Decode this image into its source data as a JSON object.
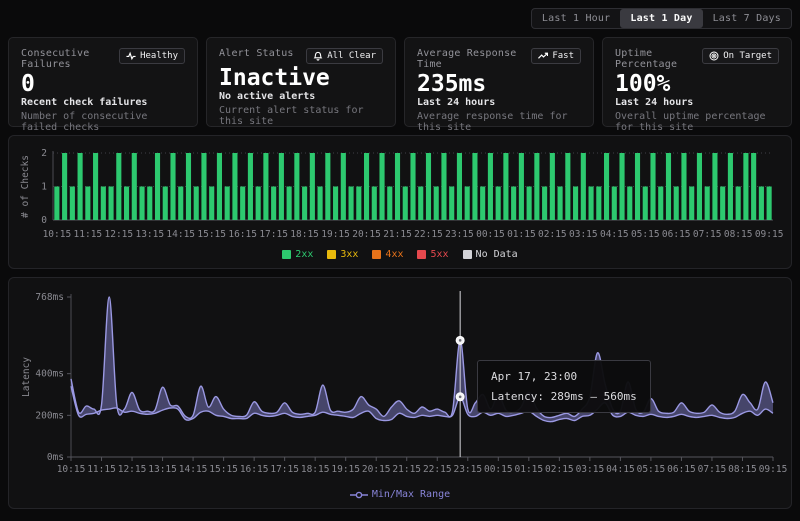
{
  "header": {
    "time_ranges": [
      {
        "label": "Last 1 Hour",
        "active": false
      },
      {
        "label": "Last 1 Day",
        "active": true
      },
      {
        "label": "Last 7 Days",
        "active": false
      }
    ]
  },
  "cards": [
    {
      "title": "Consecutive Failures",
      "badge": {
        "icon": "pulse-icon",
        "label": "Healthy"
      },
      "value": "0",
      "subtitle": "Recent check failures",
      "description": "Number of consecutive failed checks"
    },
    {
      "title": "Alert Status",
      "badge": {
        "icon": "bell-icon",
        "label": "All Clear"
      },
      "value": "Inactive",
      "subtitle": "No active alerts",
      "description": "Current alert status for this site"
    },
    {
      "title": "Average Response Time",
      "badge": {
        "icon": "trend-up-icon",
        "label": "Fast"
      },
      "value": "235ms",
      "subtitle": "Last 24 hours",
      "description": "Average response time for this site"
    },
    {
      "title": "Uptime Percentage",
      "badge": {
        "icon": "target-icon",
        "label": "On Target"
      },
      "value": "100%",
      "subtitle": "Last 24 hours",
      "description": "Overall uptime percentage for this site"
    }
  ],
  "colors": {
    "green": "#2dc96f",
    "yellow": "#e8b90c",
    "orange": "#e8731a",
    "red": "#e5484d",
    "nodata": "#d4d4d8",
    "purple": "#8884d8",
    "purple_line": "#9b99e3",
    "axis_text": "#8a8a91",
    "grid": "#3f3f46"
  },
  "chart_data": [
    {
      "type": "bar",
      "ylabel": "# of Checks",
      "y_ticks": [
        0,
        1,
        2
      ],
      "ylim": [
        0,
        2
      ],
      "categories": [
        "10:15",
        "11:15",
        "12:15",
        "13:15",
        "14:15",
        "15:15",
        "16:15",
        "17:15",
        "18:15",
        "19:15",
        "20:15",
        "21:15",
        "22:15",
        "23:15",
        "00:15",
        "01:15",
        "02:15",
        "03:15",
        "04:15",
        "05:15",
        "06:15",
        "07:15",
        "08:15",
        "09:15"
      ],
      "label_every": 4,
      "values": [
        1,
        2,
        1,
        2,
        1,
        2,
        1,
        1,
        2,
        1,
        2,
        1,
        1,
        2,
        1,
        2,
        1,
        2,
        1,
        2,
        1,
        2,
        1,
        2,
        1,
        2,
        1,
        2,
        1,
        2,
        1,
        2,
        1,
        2,
        1,
        2,
        1,
        2,
        1,
        1,
        2,
        1,
        2,
        1,
        2,
        1,
        2,
        1,
        2,
        1,
        2,
        1,
        2,
        1,
        2,
        1,
        2,
        1,
        2,
        1,
        2,
        1,
        2,
        1,
        2,
        1,
        2,
        1,
        2,
        1,
        1,
        2,
        1,
        2,
        1,
        2,
        1,
        2,
        1,
        2,
        1,
        2,
        1,
        2,
        1,
        2,
        1,
        2,
        1,
        2,
        2,
        1,
        1
      ],
      "bar_color": "#2dc96f",
      "legend": [
        {
          "label": "2xx",
          "color": "#2dc96f"
        },
        {
          "label": "3xx",
          "color": "#e8b90c"
        },
        {
          "label": "4xx",
          "color": "#e8731a"
        },
        {
          "label": "5xx",
          "color": "#e5484d"
        },
        {
          "label": "No Data",
          "color": "#d4d4d8"
        }
      ]
    },
    {
      "type": "area",
      "ylabel": "Latency",
      "ylim": [
        0,
        768
      ],
      "y_ticks": [
        {
          "v": 0,
          "label": "0ms"
        },
        {
          "v": 200,
          "label": "200ms"
        },
        {
          "v": 400,
          "label": "400ms"
        },
        {
          "v": 768,
          "label": "768ms"
        }
      ],
      "categories": [
        "10:15",
        "11:15",
        "12:15",
        "13:15",
        "14:15",
        "15:15",
        "16:15",
        "17:15",
        "18:15",
        "19:15",
        "20:15",
        "21:15",
        "22:15",
        "23:15",
        "00:15",
        "01:15",
        "02:15",
        "03:15",
        "04:15",
        "05:15",
        "06:15",
        "07:15",
        "08:15",
        "09:15"
      ],
      "label_every": 4,
      "series": [
        {
          "name": "min",
          "values": [
            340,
            200,
            205,
            210,
            225,
            230,
            235,
            215,
            220,
            210,
            205,
            210,
            225,
            235,
            230,
            180,
            185,
            215,
            220,
            200,
            195,
            185,
            185,
            185,
            210,
            200,
            195,
            200,
            210,
            195,
            190,
            195,
            200,
            215,
            205,
            200,
            195,
            190,
            210,
            220,
            185,
            175,
            180,
            210,
            195,
            190,
            200,
            195,
            200,
            195,
            200,
            289,
            205,
            195,
            215,
            200,
            210,
            195,
            200,
            210,
            220,
            195,
            175,
            170,
            180,
            185,
            175,
            195,
            200,
            230,
            260,
            200,
            195,
            215,
            200,
            195,
            205,
            195,
            190,
            195,
            205,
            195,
            190,
            195,
            200,
            190,
            185,
            190,
            210,
            220,
            200,
            230,
            210
          ]
        },
        {
          "name": "max",
          "values": [
            375,
            215,
            245,
            230,
            250,
            768,
            250,
            230,
            310,
            225,
            220,
            225,
            335,
            250,
            245,
            195,
            200,
            340,
            240,
            290,
            230,
            200,
            195,
            200,
            265,
            220,
            210,
            215,
            260,
            215,
            205,
            210,
            215,
            345,
            225,
            220,
            215,
            230,
            290,
            250,
            230,
            195,
            240,
            270,
            230,
            210,
            240,
            220,
            230,
            215,
            220,
            560,
            230,
            260,
            300,
            230,
            300,
            225,
            215,
            240,
            310,
            235,
            195,
            190,
            200,
            210,
            195,
            230,
            290,
            500,
            350,
            230,
            220,
            360,
            230,
            215,
            280,
            220,
            210,
            215,
            260,
            220,
            210,
            215,
            250,
            215,
            205,
            220,
            300,
            260,
            230,
            360,
            260
          ]
        }
      ],
      "legend": [
        {
          "label": "Min/Max Range",
          "color": "#8884d8"
        }
      ],
      "crosshair": {
        "index": 51,
        "tooltip_title": "Apr 17, 23:00",
        "tooltip_value": "Latency: 289ms – 560ms"
      }
    }
  ]
}
